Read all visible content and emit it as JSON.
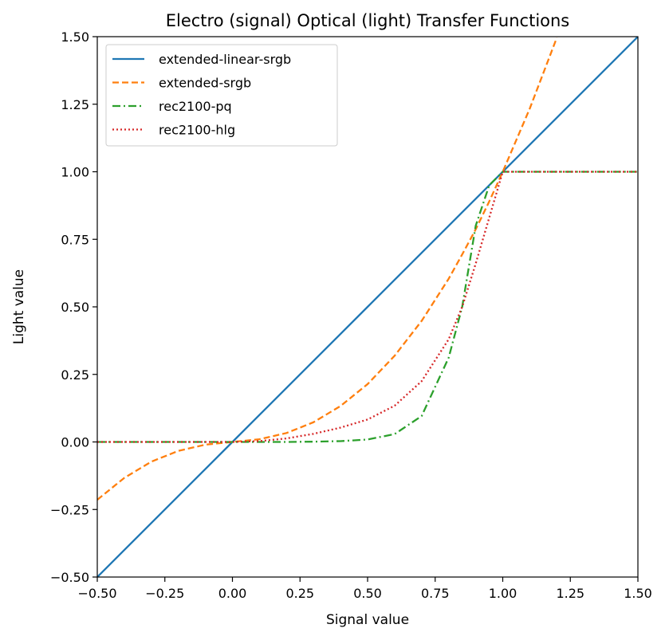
{
  "chart_data": {
    "type": "line",
    "title": "Electro (signal) Optical (light) Transfer Functions",
    "xlabel": "Signal value",
    "ylabel": "Light value",
    "xlim": [
      -0.5,
      1.5
    ],
    "ylim": [
      -0.5,
      1.5
    ],
    "x_ticks": [
      "−0.50",
      "−0.25",
      "0.00",
      "0.25",
      "0.50",
      "0.75",
      "1.00",
      "1.25",
      "1.50"
    ],
    "y_ticks": [
      "−0.50",
      "−0.25",
      "0.00",
      "0.25",
      "0.50",
      "0.75",
      "1.00",
      "1.25",
      "1.50"
    ],
    "grid": false,
    "legend_position": "top-left",
    "x": [
      -0.5,
      -0.4,
      -0.3,
      -0.2,
      -0.1,
      0.0,
      0.1,
      0.2,
      0.3,
      0.4,
      0.5,
      0.6,
      0.7,
      0.8,
      0.85,
      0.9,
      0.95,
      1.0,
      1.1,
      1.2,
      1.3,
      1.4,
      1.5
    ],
    "series": [
      {
        "name": "extended-linear-srgb",
        "color": "#1f77b4",
        "dash": "solid",
        "values": [
          -0.5,
          -0.4,
          -0.3,
          -0.2,
          -0.1,
          0.0,
          0.1,
          0.2,
          0.3,
          0.4,
          0.5,
          0.6,
          0.7,
          0.8,
          0.85,
          0.9,
          0.95,
          1.0,
          1.1,
          1.2,
          1.3,
          1.4,
          1.5
        ]
      },
      {
        "name": "extended-srgb",
        "color": "#ff7f0e",
        "dash": "dashed",
        "values": [
          -0.214,
          -0.133,
          -0.073,
          -0.033,
          -0.01,
          0.0,
          0.01,
          0.033,
          0.073,
          0.133,
          0.214,
          0.319,
          0.448,
          0.604,
          0.694,
          0.787,
          0.89,
          1.0,
          1.234,
          1.496,
          null,
          null,
          null
        ]
      },
      {
        "name": "rec2100-pq",
        "color": "#2ca02c",
        "dash": "dashdot",
        "values": [
          0.0,
          0.0,
          0.0,
          0.0,
          0.0,
          0.0,
          0.0,
          0.0,
          0.001,
          0.003,
          0.009,
          0.029,
          0.096,
          0.312,
          0.5,
          0.8,
          0.95,
          1.0,
          1.0,
          1.0,
          1.0,
          1.0,
          1.0
        ]
      },
      {
        "name": "rec2100-hlg",
        "color": "#d62728",
        "dash": "dotted",
        "values": [
          0.0,
          0.0,
          0.0,
          0.0,
          0.0,
          0.0,
          0.003,
          0.013,
          0.03,
          0.053,
          0.083,
          0.134,
          0.225,
          0.38,
          0.5,
          0.66,
          0.83,
          1.0,
          1.0,
          1.0,
          1.0,
          1.0,
          1.0
        ]
      }
    ]
  }
}
